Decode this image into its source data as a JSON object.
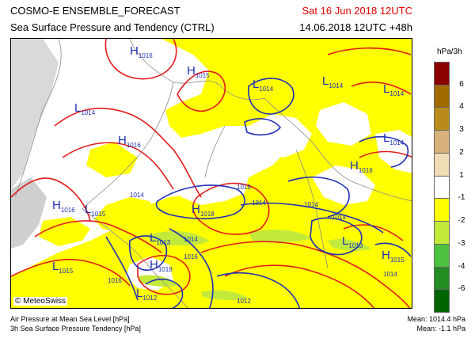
{
  "title": "COSMO-E ENSEMBLE_FORECAST",
  "subtitle": "Sea Surface Pressure and Tendency (CTRL)",
  "valid_time": "Sat 16 Jun 2018 12UTC",
  "run_time": "14.06.2018 12UTC +48h",
  "credit": "© MeteoSwiss",
  "legend": {
    "unit": "hPa/3h",
    "ticks": [
      "6",
      "4",
      "3",
      "2",
      "1",
      "-1",
      "-2",
      "-3",
      "-4",
      "-6"
    ],
    "colors": [
      "#8b0000",
      "#a06a00",
      "#b98c1a",
      "#d7b27a",
      "#f0ddb5",
      "#ffffff",
      "#ffff00",
      "#c3ea3a",
      "#4cc23e",
      "#228b22",
      "#006400"
    ]
  },
  "footer": {
    "line1": "Air Pressure at Mean Sea Level [hPa]",
    "line2": "3h Sea Surface Pressure Tendency [hPa]",
    "mean1": "Mean: 1014.4 hPa",
    "mean2": "Mean:  -1.1 hPa"
  },
  "map_labels": {
    "h1": {
      "letter": "H",
      "value": "1016"
    },
    "h2": {
      "letter": "H",
      "value": "1015"
    },
    "l1": {
      "letter": "L",
      "value": "1014"
    },
    "l2": {
      "letter": "L",
      "value": "1014"
    },
    "l3": {
      "letter": "L",
      "value": "1014"
    },
    "l4": {
      "letter": "L",
      "value": "1014"
    },
    "l5": {
      "letter": "L",
      "value": "1014"
    },
    "h3": {
      "letter": "H",
      "value": "1016"
    },
    "h4": {
      "letter": "H",
      "value": "1016"
    },
    "h5": {
      "letter": "H",
      "value": "1018"
    },
    "h6": {
      "letter": "H",
      "value": "1016"
    },
    "l6": {
      "letter": "L",
      "value": "1015"
    },
    "l7": {
      "letter": "L",
      "value": "1013"
    },
    "l8": {
      "letter": "L",
      "value": "1013"
    },
    "h7": {
      "letter": "H",
      "value": "1018"
    },
    "h8": {
      "letter": "H",
      "value": "1015"
    },
    "l9": {
      "letter": "L",
      "value": "1015"
    },
    "l10": {
      "letter": "L",
      "value": "1012"
    },
    "c1016a": "1016",
    "c1014a": "1014",
    "c1014b": "1014",
    "c1014c": "1014",
    "c1014d": "1014",
    "c1014e": "1014",
    "c1016b": "1016",
    "c1016c": "1016",
    "c1012": "1012",
    "c1014f": "1014"
  }
}
